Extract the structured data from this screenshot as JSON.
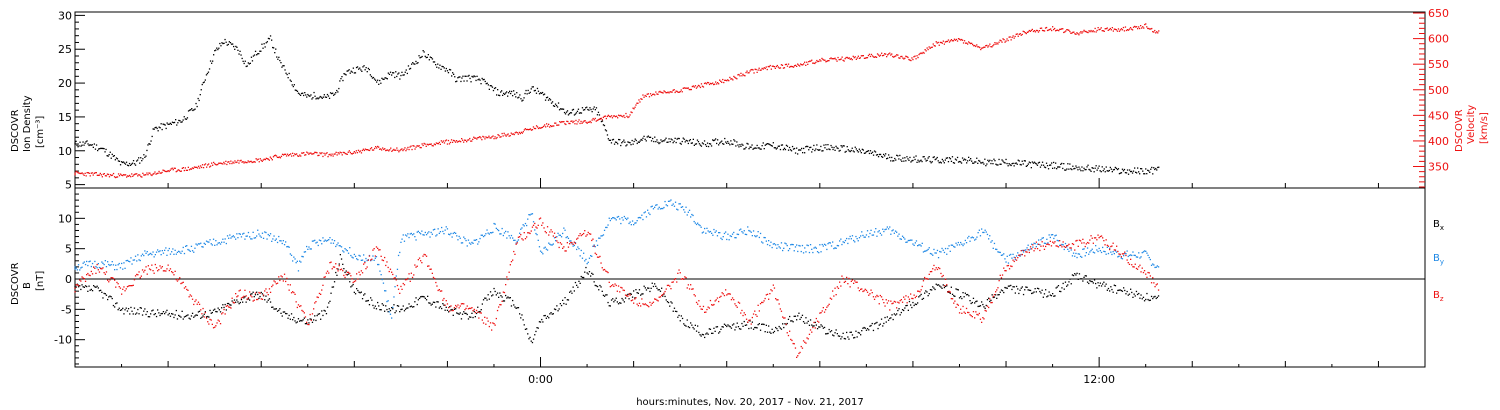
{
  "chart_data": [
    {
      "type": "scatter",
      "title": "",
      "xlabel": "",
      "ylabel_left": [
        "DSCOVR",
        "Ion Density",
        "[cm⁻³]"
      ],
      "ylabel_right": [
        "DSCOVR",
        "Velocity",
        "[km/s]"
      ],
      "xlim_hours": [
        -10,
        19
      ],
      "ylim_left": [
        4.5,
        30.5
      ],
      "ylim_right": [
        308,
        652
      ],
      "yticks_left": [
        "5",
        "10",
        "15",
        "20",
        "25",
        "30"
      ],
      "yticks_right": [
        "350",
        "400",
        "450",
        "500",
        "550",
        "600",
        "650"
      ],
      "grid": false,
      "legend": "none",
      "series": [
        {
          "name": "",
          "axis": "left",
          "color": "#000000",
          "x_hours": [
            -10.0,
            -9.7,
            -9.4,
            -9.2,
            -9.0,
            -8.7,
            -8.5,
            -8.3,
            -8.0,
            -7.7,
            -7.4,
            -7.2,
            -7.0,
            -6.8,
            -6.5,
            -6.3,
            -6.1,
            -5.8,
            -5.6,
            -5.4,
            -5.2,
            -5.0,
            -4.8,
            -4.6,
            -4.4,
            -4.2,
            -4.0,
            -3.7,
            -3.5,
            -3.2,
            -3.0,
            -2.7,
            -2.5,
            -2.3,
            -2.0,
            -1.8,
            -1.6,
            -1.3,
            -1.1,
            -0.9,
            -0.6,
            -0.4,
            -0.2,
            0.0,
            0.3,
            0.6,
            0.9,
            1.2,
            1.5,
            1.9,
            2.1,
            2.2,
            2.5,
            3.0,
            3.5,
            4.0,
            4.5,
            5.0,
            5.5,
            6.0,
            6.5,
            7.0,
            7.5,
            8.0,
            8.5,
            9.0,
            9.5,
            10.0,
            10.5,
            11.0,
            11.5,
            12.0,
            12.5,
            13.0,
            13.3
          ],
          "y": [
            11.0,
            11.0,
            10.2,
            9.2,
            8.0,
            8.2,
            9.2,
            13.2,
            13.8,
            14.5,
            16.5,
            20.8,
            24.5,
            26.2,
            25.0,
            22.5,
            24.5,
            26.5,
            23.0,
            21.0,
            18.5,
            18.0,
            18.2,
            17.8,
            18.5,
            21.5,
            22.0,
            22.2,
            20.0,
            21.5,
            21.0,
            23.0,
            24.5,
            23.0,
            22.0,
            20.5,
            20.8,
            20.5,
            19.5,
            18.5,
            18.5,
            17.8,
            19.2,
            18.5,
            17.0,
            15.5,
            16.0,
            16.0,
            11.5,
            11.0,
            11.5,
            11.8,
            11.5,
            11.5,
            11.0,
            11.5,
            10.5,
            10.8,
            10.0,
            10.5,
            10.3,
            9.8,
            9.0,
            8.8,
            8.6,
            8.7,
            8.3,
            8.3,
            8.0,
            7.8,
            7.5,
            7.3,
            7.0,
            7.0,
            7.2
          ]
        },
        {
          "name": "",
          "axis": "right",
          "color": "#ee1111",
          "x_hours": [
            -10.0,
            -9.5,
            -9.0,
            -8.5,
            -8.0,
            -7.5,
            -7.0,
            -6.5,
            -6.0,
            -5.5,
            -5.0,
            -4.5,
            -4.0,
            -3.5,
            -3.0,
            -2.5,
            -2.0,
            -1.5,
            -1.0,
            -0.5,
            0.0,
            0.5,
            1.0,
            1.5,
            1.9,
            2.2,
            2.5,
            3.0,
            3.5,
            4.0,
            4.5,
            5.0,
            5.5,
            6.0,
            6.5,
            7.0,
            7.5,
            8.0,
            8.5,
            9.0,
            9.5,
            10.0,
            10.5,
            11.0,
            11.5,
            12.0,
            12.5,
            13.0,
            13.3
          ],
          "y": [
            337,
            334,
            332,
            333,
            342,
            346,
            355,
            360,
            363,
            372,
            375,
            373,
            378,
            386,
            382,
            392,
            398,
            403,
            408,
            416,
            428,
            436,
            438,
            448,
            450,
            487,
            493,
            499,
            509,
            518,
            535,
            545,
            548,
            557,
            560,
            565,
            569,
            560,
            590,
            598,
            580,
            598,
            615,
            620,
            610,
            618,
            618,
            625,
            610
          ]
        }
      ]
    },
    {
      "type": "scatter",
      "title": "",
      "xlabel": "hours:minutes, Nov. 20, 2017 - Nov. 21, 2017",
      "ylabel": [
        "DSCOVR",
        "B",
        "[nT]"
      ],
      "xlim_hours": [
        -10,
        19
      ],
      "ylim": [
        -14.5,
        15
      ],
      "yticks": [
        "-10",
        "-5",
        "0",
        "5",
        "10"
      ],
      "xticks": [
        "0:00",
        "12:00"
      ],
      "zero_line": true,
      "grid": false,
      "legend": "right",
      "series": [
        {
          "name": "Bx",
          "color": "#000000",
          "x_hours": [
            -10.0,
            -9.5,
            -9.0,
            -8.5,
            -8.0,
            -7.5,
            -7.0,
            -6.5,
            -6.0,
            -5.5,
            -5.0,
            -4.6,
            -4.3,
            -4.0,
            -3.5,
            -3.0,
            -2.5,
            -2.0,
            -1.5,
            -1.0,
            -0.5,
            -0.2,
            0.0,
            0.5,
            1.0,
            1.5,
            2.0,
            2.5,
            3.0,
            3.5,
            4.0,
            4.5,
            5.0,
            5.5,
            6.0,
            6.5,
            7.0,
            7.5,
            8.0,
            8.5,
            9.0,
            9.5,
            10.0,
            10.5,
            11.0,
            11.5,
            12.0,
            12.5,
            13.0,
            13.3
          ],
          "y": [
            -1.5,
            -1.8,
            -5.0,
            -5.5,
            -5.8,
            -6.0,
            -5.5,
            -3.5,
            -2.5,
            -6.0,
            -7.0,
            -5.5,
            3.5,
            -2.0,
            -4.5,
            -5.0,
            -3.0,
            -5.0,
            -6.5,
            -2.0,
            -4.5,
            -10.5,
            -7.0,
            -4.0,
            1.5,
            -4.0,
            -2.5,
            -1.0,
            -6.5,
            -9.0,
            -8.0,
            -7.5,
            -8.5,
            -6.0,
            -8.0,
            -9.5,
            -8.5,
            -6.5,
            -4.0,
            -1.0,
            -2.5,
            -4.5,
            -1.5,
            -2.0,
            -2.5,
            0.5,
            -1.0,
            -2.0,
            -3.0,
            -3.5
          ]
        },
        {
          "name": "By",
          "color": "#1e88e5",
          "x_hours": [
            -10.0,
            -9.5,
            -9.0,
            -8.5,
            -8.0,
            -7.5,
            -7.0,
            -6.5,
            -6.0,
            -5.5,
            -5.2,
            -5.0,
            -4.5,
            -4.0,
            -3.5,
            -3.2,
            -3.0,
            -2.5,
            -2.0,
            -1.5,
            -1.0,
            -0.5,
            -0.2,
            0.0,
            0.5,
            1.0,
            1.5,
            2.0,
            2.5,
            2.8,
            3.2,
            3.5,
            4.0,
            4.5,
            5.0,
            5.5,
            6.0,
            6.5,
            7.0,
            7.5,
            8.0,
            8.5,
            9.0,
            9.5,
            10.0,
            10.5,
            11.0,
            11.5,
            12.0,
            12.5,
            13.0,
            13.3
          ],
          "y": [
            2.0,
            2.5,
            2.0,
            4.0,
            4.5,
            5.0,
            6.0,
            7.0,
            7.5,
            6.0,
            2.0,
            5.5,
            6.5,
            4.0,
            3.0,
            -6.5,
            6.5,
            7.5,
            8.0,
            5.5,
            8.5,
            6.5,
            11.0,
            4.0,
            8.0,
            3.0,
            10.0,
            9.5,
            12.0,
            12.5,
            11.0,
            8.0,
            7.0,
            8.0,
            5.5,
            5.0,
            5.0,
            6.0,
            7.5,
            8.0,
            6.0,
            4.0,
            5.5,
            8.0,
            3.0,
            5.0,
            7.0,
            4.0,
            5.0,
            4.0,
            4.0,
            1.5
          ]
        },
        {
          "name": "Bz",
          "color": "#ee1111",
          "x_hours": [
            -10.0,
            -9.5,
            -9.0,
            -8.5,
            -8.0,
            -7.5,
            -7.0,
            -6.5,
            -6.0,
            -5.5,
            -5.0,
            -4.5,
            -4.0,
            -3.5,
            -3.0,
            -2.5,
            -2.0,
            -1.5,
            -1.0,
            -0.5,
            0.0,
            0.5,
            1.0,
            1.5,
            2.0,
            2.5,
            3.0,
            3.5,
            4.0,
            4.5,
            5.0,
            5.5,
            6.0,
            6.5,
            7.0,
            7.5,
            8.0,
            8.5,
            9.0,
            9.5,
            10.0,
            10.5,
            11.0,
            11.5,
            12.0,
            12.5,
            13.0,
            13.3
          ],
          "y": [
            -1.5,
            2.0,
            -2.0,
            1.5,
            2.0,
            -3.0,
            -8.0,
            -2.5,
            -3.0,
            0.5,
            -7.5,
            2.5,
            0.0,
            5.0,
            -2.0,
            4.0,
            -4.5,
            -5.0,
            -8.0,
            6.0,
            9.5,
            5.0,
            8.0,
            -0.5,
            -3.5,
            -4.0,
            1.0,
            -5.0,
            -2.0,
            -7.0,
            -1.5,
            -12.5,
            -6.0,
            0.0,
            -2.0,
            -4.5,
            -3.0,
            2.0,
            -5.0,
            -6.5,
            2.0,
            5.0,
            6.0,
            5.5,
            7.0,
            4.0,
            1.0,
            -2.0
          ]
        }
      ]
    }
  ]
}
